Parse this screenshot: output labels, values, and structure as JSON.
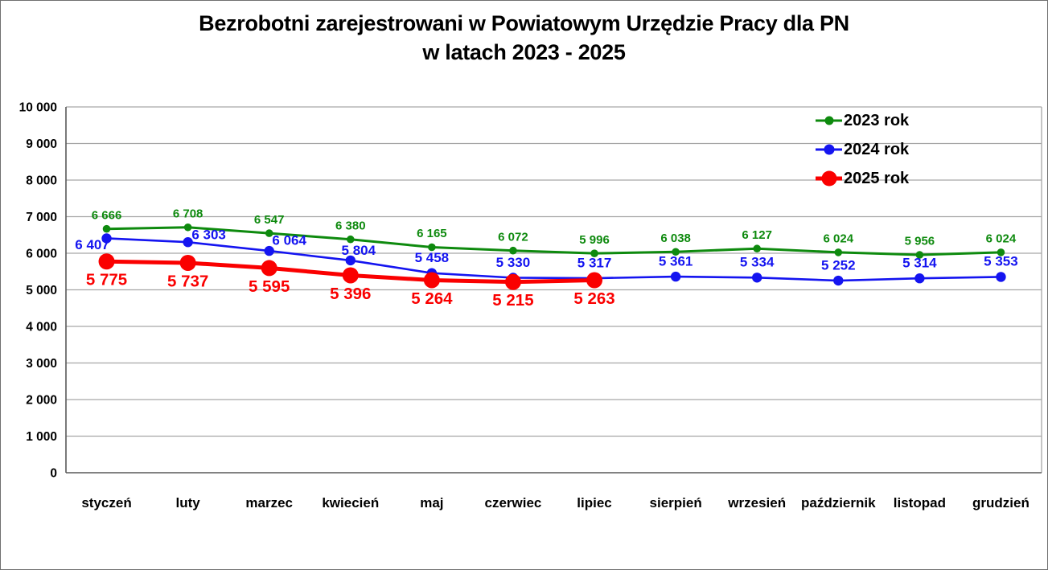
{
  "chart_data": {
    "type": "line",
    "title_line1": "Bezrobotni zarejestrowani w Powiatowym Urzędzie Pracy dla PN",
    "title_line2": "w latach 2023 - 2025",
    "categories": [
      "styczeń",
      "luty",
      "marzec",
      "kwiecień",
      "maj",
      "czerwiec",
      "lipiec",
      "sierpień",
      "wrzesień",
      "październik",
      "listopad",
      "grudzień"
    ],
    "series": [
      {
        "name": "2023 rok",
        "color": "#0e8a0e",
        "label_position": "above",
        "values": [
          6666,
          6708,
          6547,
          6380,
          6165,
          6072,
          5996,
          6038,
          6127,
          6024,
          5956,
          6024
        ]
      },
      {
        "name": "2024 rok",
        "color": "#1414f0",
        "label_position": "above",
        "values": [
          6407,
          6303,
          6064,
          5804,
          5458,
          5330,
          5317,
          5361,
          5334,
          5252,
          5314,
          5353
        ]
      },
      {
        "name": "2025 rok",
        "color": "#fa0000",
        "label_position": "below",
        "values": [
          5775,
          5737,
          5595,
          5396,
          5264,
          5215,
          5263
        ]
      }
    ],
    "ylim": [
      0,
      10000
    ],
    "ytick_interval": 1000,
    "ytick_labels": [
      "0",
      "1 000",
      "2 000",
      "3 000",
      "4 000",
      "5 000",
      "6 000",
      "7 000",
      "8 000",
      "9 000",
      "10 000"
    ],
    "grid": "horizontal",
    "legend_position": "top-right",
    "colors": {
      "gridline": "#a6a6a6",
      "axis": "#595959",
      "text": "#000000",
      "background": "#ffffff"
    }
  }
}
